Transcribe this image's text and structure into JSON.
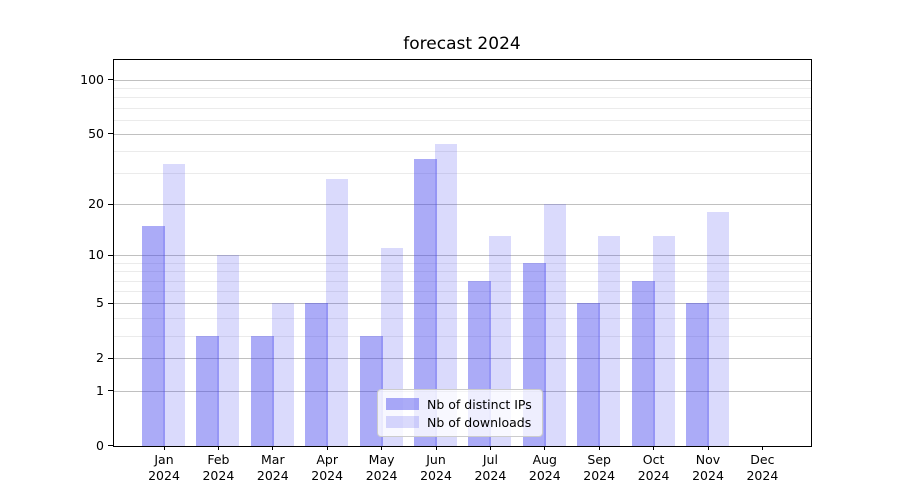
{
  "title": "forecast 2024",
  "chart_data": {
    "type": "bar",
    "title": "forecast 2024",
    "categories": [
      {
        "month": "Jan",
        "year": "2024"
      },
      {
        "month": "Feb",
        "year": "2024"
      },
      {
        "month": "Mar",
        "year": "2024"
      },
      {
        "month": "Apr",
        "year": "2024"
      },
      {
        "month": "May",
        "year": "2024"
      },
      {
        "month": "Jun",
        "year": "2024"
      },
      {
        "month": "Jul",
        "year": "2024"
      },
      {
        "month": "Aug",
        "year": "2024"
      },
      {
        "month": "Sep",
        "year": "2024"
      },
      {
        "month": "Oct",
        "year": "2024"
      },
      {
        "month": "Nov",
        "year": "2024"
      },
      {
        "month": "Dec",
        "year": "2024"
      }
    ],
    "series": [
      {
        "key": "ips",
        "name": "Nb of distinct IPs",
        "color": "rgba(68,68,238,0.45)",
        "color_hex_on_white": "#aaaaf7",
        "values": [
          15,
          3,
          3,
          5,
          3,
          36,
          7,
          9,
          5,
          7,
          5,
          0
        ]
      },
      {
        "key": "downloads",
        "name": "Nb of downloads",
        "color": "rgba(68,68,238,0.20)",
        "color_hex_on_white": "#dadaf9",
        "values": [
          34,
          10,
          5,
          28,
          11,
          44,
          13,
          20,
          13,
          13,
          18,
          0
        ]
      }
    ],
    "yscale": "log1p",
    "ylim": [
      0,
      130
    ],
    "y_axis": {
      "ticks": [
        {
          "label": "100",
          "value": 100
        },
        {
          "label": "50",
          "value": 50
        },
        {
          "label": "20",
          "value": 20
        },
        {
          "label": "10",
          "value": 10
        },
        {
          "label": "5",
          "value": 5
        },
        {
          "label": "2",
          "value": 2
        },
        {
          "label": "1",
          "value": 1
        },
        {
          "label": "0",
          "value": 0
        }
      ],
      "minor_values": [
        3,
        4,
        6,
        7,
        8,
        9,
        30,
        40,
        60,
        70,
        80,
        90
      ]
    },
    "legend_position": "lower center",
    "grid": true
  },
  "colors": {
    "grid_major": "#c0c0c0",
    "grid_minor": "#ebebeb",
    "axis": "#000000",
    "legend_border": "#cccccc"
  }
}
